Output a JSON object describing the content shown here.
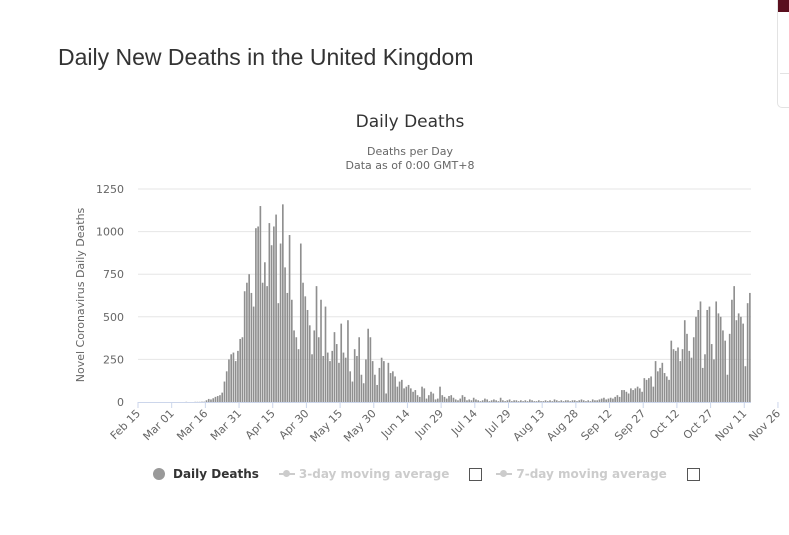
{
  "page": {
    "title": "Daily New Deaths in the United Kingdom"
  },
  "legend": {
    "items": [
      {
        "label": "Daily Deaths",
        "active": true
      },
      {
        "label": "3-day moving average",
        "active": false
      },
      {
        "label": "7-day moving average",
        "active": false
      }
    ]
  },
  "colors": {
    "bar": "#8f8f8f",
    "grid": "#e6e6e6",
    "axis_text": "#666666",
    "accent": "#5a0f1e"
  },
  "chart_data": {
    "type": "bar",
    "title": "Daily Deaths",
    "subtitle_lines": [
      "Deaths per Day",
      "Data as of 0:00 GMT+8"
    ],
    "xlabel": "",
    "ylabel": "Novel Coronavirus Daily Deaths",
    "ylim": [
      0,
      1250
    ],
    "yticks": [
      0,
      250,
      500,
      750,
      1000,
      1250
    ],
    "ytick_labels": [
      "0",
      "250",
      "500",
      "750",
      "1000",
      "1250"
    ],
    "x_start": "Feb 15",
    "xtick_labels": [
      "Feb 15",
      "Mar 01",
      "Mar 16",
      "Mar 31",
      "Apr 15",
      "Apr 30",
      "May 15",
      "May 30",
      "Jun 14",
      "Jun 29",
      "Jul 14",
      "Jul 29",
      "Aug 13",
      "Aug 28",
      "Sep 12",
      "Sep 27",
      "Oct 12",
      "Oct 27",
      "Nov 11",
      "Nov 26"
    ],
    "xtick_day_index": [
      0,
      15,
      30,
      45,
      60,
      75,
      90,
      105,
      120,
      135,
      150,
      165,
      180,
      195,
      210,
      225,
      240,
      255,
      270,
      285
    ],
    "values": [
      0,
      0,
      0,
      0,
      0,
      0,
      0,
      0,
      0,
      0,
      0,
      0,
      0,
      0,
      0,
      0,
      0,
      0,
      0,
      0,
      0,
      1,
      0,
      0,
      0,
      1,
      1,
      1,
      2,
      2,
      10,
      18,
      15,
      22,
      30,
      35,
      40,
      55,
      120,
      180,
      250,
      280,
      290,
      240,
      300,
      370,
      380,
      650,
      700,
      750,
      640,
      560,
      1020,
      1030,
      1150,
      700,
      820,
      680,
      1050,
      920,
      1030,
      1100,
      580,
      930,
      1160,
      790,
      640,
      980,
      600,
      420,
      380,
      310,
      930,
      700,
      620,
      540,
      450,
      280,
      420,
      680,
      380,
      600,
      270,
      560,
      290,
      240,
      300,
      410,
      340,
      230,
      460,
      290,
      260,
      480,
      180,
      120,
      310,
      270,
      380,
      160,
      110,
      250,
      430,
      380,
      240,
      160,
      100,
      200,
      260,
      240,
      50,
      230,
      170,
      180,
      150,
      90,
      120,
      130,
      80,
      90,
      100,
      80,
      60,
      70,
      40,
      30,
      90,
      80,
      20,
      40,
      60,
      50,
      15,
      20,
      90,
      40,
      30,
      20,
      35,
      40,
      25,
      15,
      10,
      20,
      40,
      30,
      10,
      15,
      10,
      25,
      15,
      10,
      5,
      10,
      20,
      15,
      5,
      10,
      15,
      10,
      5,
      25,
      10,
      5,
      10,
      15,
      5,
      10,
      10,
      5,
      10,
      5,
      10,
      5,
      15,
      10,
      5,
      5,
      10,
      5,
      5,
      10,
      5,
      10,
      5,
      15,
      10,
      5,
      10,
      5,
      10,
      10,
      5,
      10,
      10,
      5,
      10,
      15,
      10,
      5,
      10,
      5,
      15,
      10,
      10,
      15,
      20,
      25,
      15,
      20,
      25,
      20,
      30,
      40,
      30,
      70,
      70,
      60,
      50,
      80,
      70,
      80,
      90,
      80,
      60,
      140,
      130,
      140,
      150,
      90,
      240,
      180,
      200,
      230,
      170,
      150,
      130,
      360,
      310,
      300,
      320,
      240,
      310,
      480,
      400,
      300,
      260,
      380,
      500,
      540,
      590,
      200,
      280,
      540,
      560,
      340,
      250,
      590,
      520,
      500,
      420,
      360,
      160,
      400,
      600,
      680,
      480,
      520,
      500,
      460,
      210,
      580,
      640
    ]
  }
}
